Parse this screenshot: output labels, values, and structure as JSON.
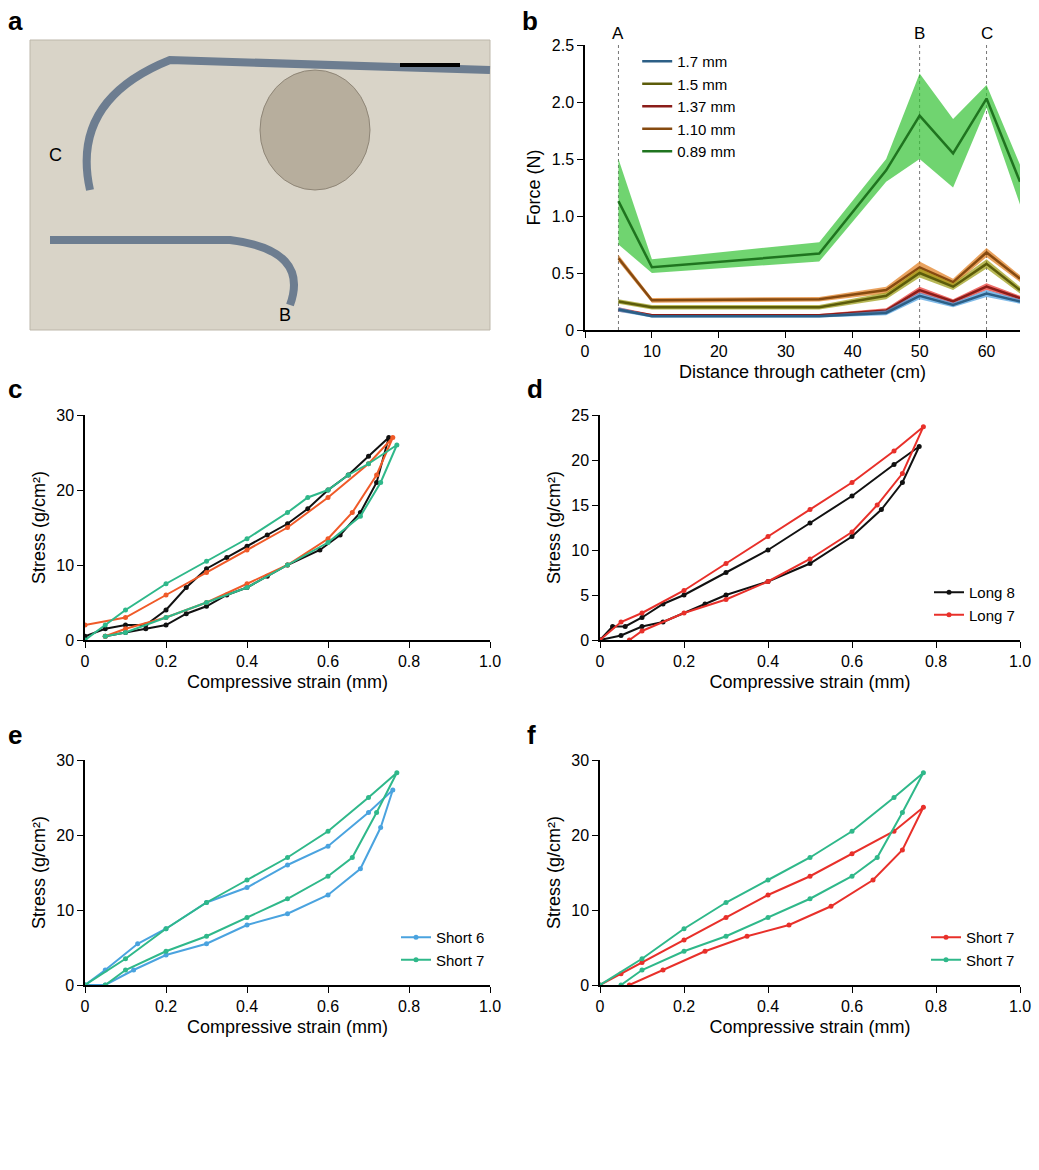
{
  "photo": {
    "panel": "a",
    "labels": [
      "C",
      "B"
    ]
  },
  "chart_data": [
    {
      "panel": "b",
      "type": "line",
      "x_label": "Distance through catheter (cm)",
      "y_label": "Force (N)",
      "xlim": [
        0,
        65
      ],
      "xticks": [
        0,
        10,
        20,
        30,
        40,
        50,
        60
      ],
      "ylim": [
        0,
        2.5
      ],
      "yticks": [
        0,
        0.5,
        {
          "value": 1,
          "label": "1.0"
        },
        1.5,
        {
          "value": 2,
          "label": "2.0"
        },
        2.5
      ],
      "legend": "upper left",
      "vlines": [
        {
          "x": 5,
          "label": "A"
        },
        {
          "x": 50,
          "label": "B"
        },
        {
          "x": 60,
          "label": "C"
        }
      ],
      "x": [
        5,
        10,
        35,
        45,
        50,
        55,
        60,
        65
      ],
      "series": [
        {
          "name": "0.89 mm",
          "color": "#33c233",
          "values": [
            1.13,
            0.55,
            0.67,
            1.4,
            1.88,
            1.55,
            2.03,
            1.3
          ],
          "lower": [
            0.75,
            0.5,
            0.6,
            1.3,
            1.5,
            1.25,
            1.95,
            1.1
          ],
          "upper": [
            1.5,
            0.62,
            0.77,
            1.5,
            2.25,
            1.85,
            2.15,
            1.45
          ]
        },
        {
          "name": "1.10 mm",
          "color": "#e07b1a",
          "values": [
            0.63,
            0.26,
            0.27,
            0.35,
            0.55,
            0.42,
            0.68,
            0.45
          ],
          "lower": [
            0.6,
            0.24,
            0.25,
            0.32,
            0.5,
            0.39,
            0.64,
            0.42
          ],
          "upper": [
            0.66,
            0.28,
            0.29,
            0.38,
            0.6,
            0.45,
            0.72,
            0.48
          ]
        },
        {
          "name": "1.37 mm",
          "color": "#e8302a",
          "values": [
            0.18,
            0.13,
            0.13,
            0.17,
            0.35,
            0.25,
            0.38,
            0.28
          ],
          "lower": [
            0.16,
            0.12,
            0.12,
            0.15,
            0.32,
            0.23,
            0.35,
            0.26
          ],
          "upper": [
            0.2,
            0.14,
            0.14,
            0.19,
            0.38,
            0.27,
            0.41,
            0.3
          ]
        },
        {
          "name": "1.5 mm",
          "color": "#9a9a10",
          "values": [
            0.25,
            0.2,
            0.2,
            0.3,
            0.5,
            0.38,
            0.58,
            0.35
          ],
          "lower": [
            0.23,
            0.18,
            0.18,
            0.27,
            0.46,
            0.35,
            0.54,
            0.32
          ],
          "upper": [
            0.27,
            0.22,
            0.22,
            0.33,
            0.54,
            0.41,
            0.62,
            0.38
          ]
        },
        {
          "name": "1.7 mm",
          "color": "#4a9ee0",
          "values": [
            0.18,
            0.12,
            0.12,
            0.15,
            0.3,
            0.22,
            0.32,
            0.25
          ],
          "lower": [
            0.16,
            0.11,
            0.11,
            0.13,
            0.27,
            0.2,
            0.29,
            0.23
          ],
          "upper": [
            0.2,
            0.13,
            0.13,
            0.17,
            0.33,
            0.24,
            0.35,
            0.27
          ]
        }
      ]
    },
    {
      "panel": "c",
      "type": "scatter",
      "marker": "circle",
      "x_label": "Compressive strain (mm)",
      "y_label": "Stress (g/cm²)",
      "xlim": [
        0,
        1
      ],
      "xticks": [
        0,
        0.2,
        0.4,
        0.6,
        0.8,
        {
          "value": 1,
          "label": "1.0"
        }
      ],
      "ylim": [
        0,
        30
      ],
      "yticks": [
        0,
        10,
        20,
        30
      ],
      "series": [
        {
          "color": "#111111",
          "x": [
            0,
            0.05,
            0.1,
            0.15,
            0.2,
            0.25,
            0.3,
            0.35,
            0.4,
            0.45,
            0.5,
            0.55,
            0.6,
            0.65,
            0.7,
            0.75,
            0.72,
            0.68,
            0.63,
            0.58,
            0.5,
            0.45,
            0.4,
            0.35,
            0.3,
            0.25,
            0.2,
            0.15,
            0.1,
            0.05
          ],
          "y": [
            0.5,
            1.5,
            2,
            2,
            4,
            7,
            9.5,
            11,
            12.5,
            14,
            15.5,
            17.5,
            20,
            22,
            24.5,
            27,
            21,
            17,
            14,
            12,
            10,
            8.5,
            7,
            6,
            4.5,
            3.5,
            2,
            1.5,
            1,
            0.5
          ]
        },
        {
          "color": "#f05a28",
          "x": [
            0,
            0.1,
            0.2,
            0.3,
            0.4,
            0.5,
            0.6,
            0.7,
            0.76,
            0.72,
            0.66,
            0.6,
            0.5,
            0.4,
            0.3,
            0.2,
            0.1,
            0.05
          ],
          "y": [
            2,
            3,
            6,
            9,
            12,
            15,
            19,
            23.5,
            27,
            22,
            17,
            13.5,
            10,
            7.5,
            5,
            3,
            1.5,
            0.5
          ]
        },
        {
          "color": "#2fb88a",
          "x": [
            0,
            0.05,
            0.1,
            0.2,
            0.3,
            0.4,
            0.5,
            0.55,
            0.6,
            0.65,
            0.7,
            0.77,
            0.73,
            0.68,
            0.6,
            0.5,
            0.4,
            0.3,
            0.2,
            0.1,
            0.05
          ],
          "y": [
            0,
            2,
            4,
            7.5,
            10.5,
            13.5,
            17,
            19,
            20,
            22,
            23.5,
            26,
            21,
            16.5,
            13,
            10,
            7,
            5,
            3,
            1,
            0.5
          ]
        }
      ]
    },
    {
      "panel": "d",
      "type": "scatter",
      "marker": "circle",
      "x_label": "Compressive strain (mm)",
      "y_label": "Stress (g/cm²)",
      "xlim": [
        0,
        1
      ],
      "xticks": [
        0,
        0.2,
        0.4,
        0.6,
        0.8,
        {
          "value": 1,
          "label": "1.0"
        }
      ],
      "ylim": [
        0,
        25
      ],
      "yticks": [
        0,
        5,
        10,
        15,
        20,
        25
      ],
      "legend": "lower right",
      "series": [
        {
          "name": "Long 8",
          "color": "#111111",
          "x": [
            0,
            0.03,
            0.06,
            0.1,
            0.15,
            0.2,
            0.3,
            0.4,
            0.5,
            0.6,
            0.7,
            0.76,
            0.72,
            0.67,
            0.6,
            0.5,
            0.4,
            0.3,
            0.25,
            0.15,
            0.1,
            0.05,
            0
          ],
          "y": [
            0,
            1.5,
            1.5,
            2.5,
            4,
            5,
            7.5,
            10,
            13,
            16,
            19.5,
            21.5,
            17.5,
            14.5,
            11.5,
            8.5,
            6.5,
            5,
            4,
            2,
            1.5,
            0.5,
            0
          ]
        },
        {
          "name": "Long 7",
          "color": "#e8302a",
          "x": [
            0,
            0.05,
            0.1,
            0.2,
            0.3,
            0.4,
            0.5,
            0.6,
            0.7,
            0.77,
            0.72,
            0.66,
            0.6,
            0.5,
            0.4,
            0.3,
            0.2,
            0.1,
            0.07
          ],
          "y": [
            0,
            2,
            3,
            5.5,
            8.5,
            11.5,
            14.5,
            17.5,
            21,
            23.7,
            18.5,
            15,
            12,
            9,
            6.5,
            4.5,
            3,
            1,
            0
          ]
        }
      ]
    },
    {
      "panel": "e",
      "type": "scatter",
      "marker": "circle",
      "x_label": "Compressive strain (mm)",
      "y_label": "Stress (g/cm²)",
      "xlim": [
        0,
        1
      ],
      "xticks": [
        0,
        0.2,
        0.4,
        0.6,
        0.8,
        {
          "value": 1,
          "label": "1.0"
        }
      ],
      "ylim": [
        0,
        30
      ],
      "yticks": [
        0,
        10,
        20,
        30
      ],
      "legend": "lower right",
      "series": [
        {
          "name": "Short 6",
          "color": "#4aa3df",
          "x": [
            0,
            0.05,
            0.13,
            0.2,
            0.3,
            0.4,
            0.5,
            0.6,
            0.7,
            0.76,
            0.73,
            0.68,
            0.6,
            0.5,
            0.4,
            0.3,
            0.2,
            0.12,
            0.05,
            0
          ],
          "y": [
            0,
            2,
            5.5,
            7.5,
            11,
            13,
            16,
            18.5,
            23,
            26,
            21,
            15.5,
            12,
            9.5,
            8,
            5.5,
            4,
            2,
            0,
            0
          ]
        },
        {
          "name": "Short 7",
          "color": "#2fb88a",
          "x": [
            0,
            0.1,
            0.2,
            0.3,
            0.4,
            0.5,
            0.6,
            0.7,
            0.77,
            0.72,
            0.66,
            0.6,
            0.5,
            0.4,
            0.3,
            0.2,
            0.1,
            0.05
          ],
          "y": [
            0,
            3.5,
            7.5,
            11,
            14,
            17,
            20.5,
            25,
            28.3,
            23,
            17,
            14.5,
            11.5,
            9,
            6.5,
            4.5,
            2,
            0
          ]
        }
      ]
    },
    {
      "panel": "f",
      "type": "scatter",
      "marker": "circle",
      "x_label": "Compressive strain (mm)",
      "y_label": "Stress (g/cm²)",
      "xlim": [
        0,
        1
      ],
      "xticks": [
        0,
        0.2,
        0.4,
        0.6,
        0.8,
        {
          "value": 1,
          "label": "1.0"
        }
      ],
      "ylim": [
        0,
        30
      ],
      "yticks": [
        0,
        10,
        20,
        30
      ],
      "legend": "lower right",
      "series": [
        {
          "name": "Short 7",
          "color": "#e8302a",
          "x": [
            0,
            0.05,
            0.1,
            0.2,
            0.3,
            0.4,
            0.5,
            0.6,
            0.7,
            0.77,
            0.72,
            0.65,
            0.55,
            0.45,
            0.35,
            0.25,
            0.15,
            0.07
          ],
          "y": [
            0,
            1.5,
            3,
            6,
            9,
            12,
            14.5,
            17.5,
            20.5,
            23.7,
            18,
            14,
            10.5,
            8,
            6.5,
            4.5,
            2,
            0
          ]
        },
        {
          "name": "Short 7",
          "color": "#2fb88a",
          "x": [
            0,
            0.1,
            0.2,
            0.3,
            0.4,
            0.5,
            0.6,
            0.7,
            0.77,
            0.72,
            0.66,
            0.6,
            0.5,
            0.4,
            0.3,
            0.2,
            0.1,
            0.05
          ],
          "y": [
            0,
            3.5,
            7.5,
            11,
            14,
            17,
            20.5,
            25,
            28.3,
            23,
            17,
            14.5,
            11.5,
            9,
            6.5,
            4.5,
            2,
            0
          ]
        }
      ]
    }
  ]
}
